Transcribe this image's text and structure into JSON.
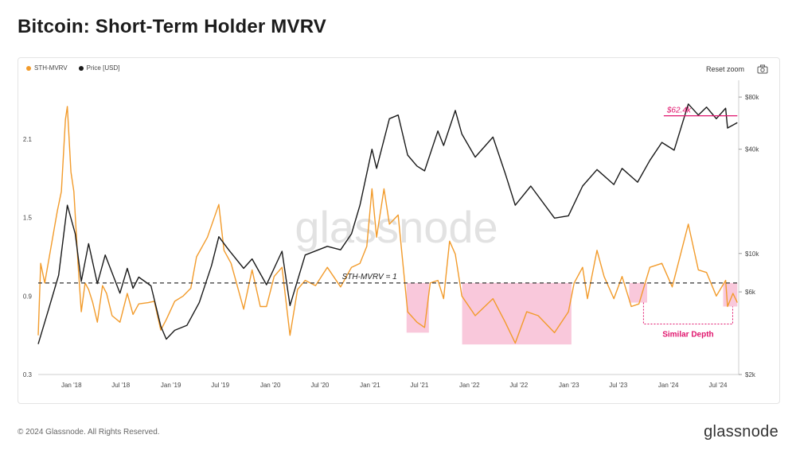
{
  "page": {
    "title": "Bitcoin: Short-Term Holder MVRV",
    "footer": "© 2024 Glassnode. All Rights Reserved.",
    "brand": "glassnode",
    "watermark": "glassnode"
  },
  "toolbar": {
    "reset_zoom": "Reset zoom",
    "camera_icon": "camera-icon"
  },
  "colors": {
    "mvrv": "#f29b2b",
    "price": "#1a1a1a",
    "threshold": "#333333",
    "highlight": "#f7b5cf",
    "annotation": "#e0156d"
  },
  "chart_data": {
    "type": "line",
    "title": "Bitcoin: Short-Term Holder MVRV",
    "x_ticks": [
      "Jan '18",
      "Jul '18",
      "Jan '19",
      "Jul '19",
      "Jan '20",
      "Jul '20",
      "Jan '21",
      "Jul '21",
      "Jan '22",
      "Jul '22",
      "Jan '23",
      "Jul '23",
      "Jan '24",
      "Jul '24"
    ],
    "y_left_ticks": [
      "0.3",
      "0.9",
      "1.5",
      "2.1"
    ],
    "y_left_range": [
      0.3,
      2.55
    ],
    "y_right_ticks": [
      "$2k",
      "$6k",
      "$10k",
      "$40k",
      "$80k"
    ],
    "y_right_range": [
      2000,
      100000
    ],
    "y_right_scale": "log",
    "x_range": [
      "2017-09-01",
      "2024-09-15"
    ],
    "legend_position": "top-left",
    "series": [
      {
        "name": "STH-MVRV",
        "axis": "left",
        "color": "#f29b2b",
        "points": [
          [
            "2017-09-01",
            0.6
          ],
          [
            "2017-09-10",
            1.15
          ],
          [
            "2017-09-25",
            1.0
          ],
          [
            "2017-10-20",
            1.3
          ],
          [
            "2017-11-10",
            1.55
          ],
          [
            "2017-11-25",
            1.7
          ],
          [
            "2017-12-10",
            2.25
          ],
          [
            "2017-12-17",
            2.35
          ],
          [
            "2017-12-30",
            1.85
          ],
          [
            "2018-01-10",
            1.7
          ],
          [
            "2018-01-25",
            1.15
          ],
          [
            "2018-02-06",
            0.78
          ],
          [
            "2018-02-20",
            1.0
          ],
          [
            "2018-03-05",
            0.95
          ],
          [
            "2018-03-20",
            0.85
          ],
          [
            "2018-04-06",
            0.7
          ],
          [
            "2018-04-25",
            0.98
          ],
          [
            "2018-05-10",
            0.92
          ],
          [
            "2018-05-30",
            0.75
          ],
          [
            "2018-06-28",
            0.7
          ],
          [
            "2018-07-25",
            0.92
          ],
          [
            "2018-08-15",
            0.76
          ],
          [
            "2018-09-05",
            0.84
          ],
          [
            "2018-10-10",
            0.85
          ],
          [
            "2018-11-01",
            0.86
          ],
          [
            "2018-11-25",
            0.64
          ],
          [
            "2018-12-15",
            0.72
          ],
          [
            "2019-01-15",
            0.86
          ],
          [
            "2019-02-15",
            0.9
          ],
          [
            "2019-03-15",
            0.96
          ],
          [
            "2019-04-05",
            1.2
          ],
          [
            "2019-05-15",
            1.35
          ],
          [
            "2019-06-26",
            1.6
          ],
          [
            "2019-07-15",
            1.25
          ],
          [
            "2019-08-10",
            1.15
          ],
          [
            "2019-09-25",
            0.8
          ],
          [
            "2019-10-26",
            1.1
          ],
          [
            "2019-11-25",
            0.82
          ],
          [
            "2019-12-18",
            0.82
          ],
          [
            "2020-01-15",
            1.05
          ],
          [
            "2020-02-13",
            1.12
          ],
          [
            "2020-03-13",
            0.6
          ],
          [
            "2020-04-10",
            0.95
          ],
          [
            "2020-05-08",
            1.02
          ],
          [
            "2020-06-15",
            0.98
          ],
          [
            "2020-07-28",
            1.12
          ],
          [
            "2020-08-20",
            1.05
          ],
          [
            "2020-09-15",
            0.97
          ],
          [
            "2020-10-25",
            1.12
          ],
          [
            "2020-11-25",
            1.15
          ],
          [
            "2020-12-20",
            1.28
          ],
          [
            "2021-01-08",
            1.72
          ],
          [
            "2021-01-25",
            1.35
          ],
          [
            "2021-02-21",
            1.72
          ],
          [
            "2021-03-13",
            1.45
          ],
          [
            "2021-04-14",
            1.52
          ],
          [
            "2021-05-19",
            0.78
          ],
          [
            "2021-06-22",
            0.7
          ],
          [
            "2021-07-20",
            0.66
          ],
          [
            "2021-08-10",
            1.0
          ],
          [
            "2021-09-07",
            1.02
          ],
          [
            "2021-09-28",
            0.88
          ],
          [
            "2021-10-20",
            1.32
          ],
          [
            "2021-11-10",
            1.22
          ],
          [
            "2021-12-04",
            0.9
          ],
          [
            "2022-01-22",
            0.75
          ],
          [
            "2022-03-28",
            0.88
          ],
          [
            "2022-05-12",
            0.7
          ],
          [
            "2022-06-18",
            0.54
          ],
          [
            "2022-07-30",
            0.78
          ],
          [
            "2022-09-10",
            0.75
          ],
          [
            "2022-11-09",
            0.62
          ],
          [
            "2022-12-30",
            0.78
          ],
          [
            "2023-01-20",
            1.0
          ],
          [
            "2023-02-20",
            1.12
          ],
          [
            "2023-03-10",
            0.88
          ],
          [
            "2023-04-14",
            1.25
          ],
          [
            "2023-05-10",
            1.05
          ],
          [
            "2023-06-15",
            0.88
          ],
          [
            "2023-07-15",
            1.05
          ],
          [
            "2023-08-18",
            0.82
          ],
          [
            "2023-09-15",
            0.84
          ],
          [
            "2023-10-25",
            1.12
          ],
          [
            "2023-12-08",
            1.15
          ],
          [
            "2024-01-15",
            0.97
          ],
          [
            "2024-03-14",
            1.45
          ],
          [
            "2024-04-20",
            1.1
          ],
          [
            "2024-05-20",
            1.08
          ],
          [
            "2024-06-25",
            0.9
          ],
          [
            "2024-07-29",
            1.02
          ],
          [
            "2024-08-05",
            0.82
          ],
          [
            "2024-08-25",
            0.92
          ],
          [
            "2024-09-10",
            0.85
          ]
        ]
      },
      {
        "name": "Price [USD]",
        "axis": "right",
        "color": "#1a1a1a",
        "points": [
          [
            "2017-09-01",
            3000
          ],
          [
            "2017-10-10",
            4800
          ],
          [
            "2017-11-15",
            7500
          ],
          [
            "2017-12-17",
            19000
          ],
          [
            "2018-01-15",
            13000
          ],
          [
            "2018-02-06",
            6900
          ],
          [
            "2018-03-05",
            11400
          ],
          [
            "2018-04-06",
            6700
          ],
          [
            "2018-05-05",
            9800
          ],
          [
            "2018-06-28",
            5900
          ],
          [
            "2018-07-25",
            8200
          ],
          [
            "2018-08-15",
            6300
          ],
          [
            "2018-09-05",
            7300
          ],
          [
            "2018-10-20",
            6500
          ],
          [
            "2018-11-25",
            3800
          ],
          [
            "2018-12-15",
            3200
          ],
          [
            "2019-01-15",
            3600
          ],
          [
            "2019-03-01",
            3850
          ],
          [
            "2019-04-15",
            5200
          ],
          [
            "2019-05-30",
            8500
          ],
          [
            "2019-06-26",
            12500
          ],
          [
            "2019-08-01",
            10500
          ],
          [
            "2019-09-25",
            8200
          ],
          [
            "2019-10-26",
            9300
          ],
          [
            "2019-12-18",
            6600
          ],
          [
            "2020-02-13",
            10300
          ],
          [
            "2020-03-13",
            5000
          ],
          [
            "2020-05-08",
            9800
          ],
          [
            "2020-07-28",
            11000
          ],
          [
            "2020-09-15",
            10500
          ],
          [
            "2020-10-25",
            13000
          ],
          [
            "2020-11-25",
            19000
          ],
          [
            "2021-01-08",
            40000
          ],
          [
            "2021-01-25",
            31000
          ],
          [
            "2021-03-13",
            60000
          ],
          [
            "2021-04-14",
            63000
          ],
          [
            "2021-05-19",
            37000
          ],
          [
            "2021-06-22",
            32000
          ],
          [
            "2021-07-20",
            30000
          ],
          [
            "2021-09-07",
            51000
          ],
          [
            "2021-09-28",
            42000
          ],
          [
            "2021-11-10",
            67000
          ],
          [
            "2021-12-04",
            49000
          ],
          [
            "2022-01-22",
            36000
          ],
          [
            "2022-03-28",
            47000
          ],
          [
            "2022-05-12",
            29000
          ],
          [
            "2022-06-18",
            19000
          ],
          [
            "2022-08-14",
            24500
          ],
          [
            "2022-11-09",
            16000
          ],
          [
            "2022-12-30",
            16500
          ],
          [
            "2023-02-20",
            24500
          ],
          [
            "2023-04-14",
            30500
          ],
          [
            "2023-06-15",
            25000
          ],
          [
            "2023-07-15",
            31000
          ],
          [
            "2023-09-10",
            25800
          ],
          [
            "2023-10-25",
            34500
          ],
          [
            "2023-12-08",
            43800
          ],
          [
            "2024-01-22",
            39500
          ],
          [
            "2024-03-14",
            73000
          ],
          [
            "2024-04-20",
            63000
          ],
          [
            "2024-05-20",
            70000
          ],
          [
            "2024-06-25",
            60000
          ],
          [
            "2024-07-29",
            69000
          ],
          [
            "2024-08-05",
            53000
          ],
          [
            "2024-09-10",
            57000
          ]
        ]
      }
    ],
    "reference_line": {
      "value": 1.0,
      "label": "STH-MVRV = 1"
    },
    "price_level": {
      "value": 62400,
      "label": "$62.4k",
      "from": "2023-12-15",
      "to": "2024-09-10"
    },
    "highlight_regions": [
      {
        "from": "2021-05-15",
        "to": "2021-08-05",
        "min": 0.62
      },
      {
        "from": "2021-12-05",
        "to": "2023-01-10",
        "min": 0.53
      },
      {
        "from": "2023-08-10",
        "to": "2023-10-15",
        "min": 0.85
      },
      {
        "from": "2024-07-20",
        "to": "2024-09-10",
        "min": 0.82
      }
    ],
    "annotation": {
      "label": "Similar Depth"
    }
  }
}
